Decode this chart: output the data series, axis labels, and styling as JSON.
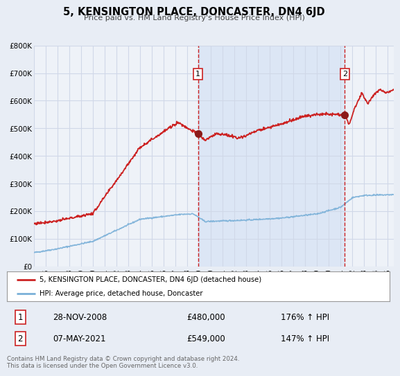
{
  "title": "5, KENSINGTON PLACE, DONCASTER, DN4 6JD",
  "subtitle": "Price paid vs. HM Land Registry's House Price Index (HPI)",
  "ylim": [
    0,
    800000
  ],
  "xlim_start": 1995.0,
  "xlim_end": 2025.5,
  "bg_color": "#e8edf5",
  "plot_bg_color": "#eef2f8",
  "shaded_bg_color": "#dce6f5",
  "grid_color": "#d0d8e8",
  "hpi_color": "#7ab0d8",
  "price_color": "#cc2222",
  "marker_color": "#8b1a1a",
  "marker1_date": 2008.91,
  "marker1_price": 480000,
  "marker2_date": 2021.35,
  "marker2_price": 549000,
  "vline_color": "#cc2222",
  "label_box_edge": "#cc2222",
  "legend_label1": "5, KENSINGTON PLACE, DONCASTER, DN4 6JD (detached house)",
  "legend_label2": "HPI: Average price, detached house, Doncaster",
  "annotation1_date": "28-NOV-2008",
  "annotation1_price": "£480,000",
  "annotation1_hpi": "176% ↑ HPI",
  "annotation2_date": "07-MAY-2021",
  "annotation2_price": "£549,000",
  "annotation2_hpi": "147% ↑ HPI",
  "footer": "Contains HM Land Registry data © Crown copyright and database right 2024.\nThis data is licensed under the Open Government Licence v3.0.",
  "yticks": [
    0,
    100000,
    200000,
    300000,
    400000,
    500000,
    600000,
    700000,
    800000
  ],
  "ytick_labels": [
    "£0",
    "£100K",
    "£200K",
    "£300K",
    "£400K",
    "£500K",
    "£600K",
    "£700K",
    "£800K"
  ],
  "xticks": [
    1995,
    1996,
    1997,
    1998,
    1999,
    2000,
    2001,
    2002,
    2003,
    2004,
    2005,
    2006,
    2007,
    2008,
    2009,
    2010,
    2011,
    2012,
    2013,
    2014,
    2015,
    2016,
    2017,
    2018,
    2019,
    2020,
    2021,
    2022,
    2023,
    2024,
    2025
  ]
}
